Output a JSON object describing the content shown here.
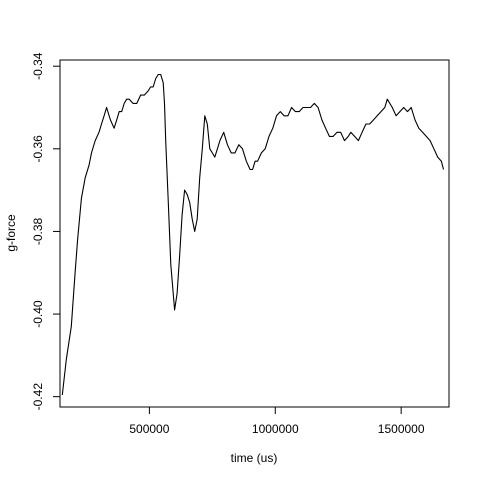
{
  "chart_data": {
    "type": "line",
    "title": "",
    "xlabel": "time (us)",
    "ylabel": "g-force",
    "xlim": [
      145000,
      1690000
    ],
    "ylim": [
      -0.4225,
      -0.3385
    ],
    "xticks": [
      500000,
      1000000,
      1500000
    ],
    "xtick_labels": [
      "500000",
      "1000000",
      "1500000"
    ],
    "yticks": [
      -0.42,
      -0.4,
      -0.38,
      -0.36,
      -0.34
    ],
    "ytick_labels": [
      "-0.42",
      "-0.40",
      "-0.38",
      "-0.36",
      "-0.34"
    ],
    "grid": false,
    "series": [
      {
        "color": "#000000",
        "x": [
          154000,
          170000,
          190000,
          205000,
          215000,
          230000,
          245000,
          260000,
          270000,
          285000,
          300000,
          310000,
          320000,
          330000,
          345000,
          360000,
          370000,
          380000,
          390000,
          400000,
          410000,
          420000,
          435000,
          450000,
          465000,
          480000,
          495000,
          505000,
          515000,
          525000,
          535000,
          545000,
          555000,
          560000,
          565000,
          575000,
          585000,
          600000,
          610000,
          620000,
          630000,
          640000,
          650000,
          660000,
          670000,
          680000,
          690000,
          700000,
          710000,
          720000,
          730000,
          740000,
          750000,
          760000,
          770000,
          780000,
          795000,
          810000,
          825000,
          840000,
          855000,
          870000,
          885000,
          900000,
          910000,
          920000,
          930000,
          945000,
          960000,
          975000,
          990000,
          1005000,
          1020000,
          1035000,
          1050000,
          1065000,
          1080000,
          1095000,
          1110000,
          1125000,
          1140000,
          1155000,
          1170000,
          1185000,
          1200000,
          1215000,
          1230000,
          1245000,
          1260000,
          1275000,
          1290000,
          1300000,
          1315000,
          1330000,
          1345000,
          1360000,
          1375000,
          1390000,
          1405000,
          1420000,
          1435000,
          1445000,
          1455000,
          1465000,
          1480000,
          1495000,
          1510000,
          1525000,
          1540000,
          1555000,
          1570000,
          1585000,
          1600000,
          1615000,
          1630000,
          1645000,
          1660000,
          1668000
        ],
        "y": [
          -0.4196,
          -0.411,
          -0.403,
          -0.39,
          -0.382,
          -0.372,
          -0.367,
          -0.364,
          -0.361,
          -0.358,
          -0.356,
          -0.354,
          -0.352,
          -0.35,
          -0.353,
          -0.355,
          -0.353,
          -0.351,
          -0.351,
          -0.349,
          -0.348,
          -0.348,
          -0.349,
          -0.349,
          -0.347,
          -0.347,
          -0.346,
          -0.345,
          -0.345,
          -0.343,
          -0.342,
          -0.342,
          -0.344,
          -0.349,
          -0.358,
          -0.373,
          -0.388,
          -0.399,
          -0.395,
          -0.386,
          -0.376,
          -0.37,
          -0.371,
          -0.373,
          -0.377,
          -0.38,
          -0.377,
          -0.367,
          -0.36,
          -0.352,
          -0.354,
          -0.36,
          -0.361,
          -0.362,
          -0.36,
          -0.358,
          -0.356,
          -0.359,
          -0.361,
          -0.361,
          -0.359,
          -0.36,
          -0.363,
          -0.365,
          -0.365,
          -0.363,
          -0.363,
          -0.361,
          -0.36,
          -0.357,
          -0.355,
          -0.352,
          -0.351,
          -0.352,
          -0.352,
          -0.35,
          -0.351,
          -0.351,
          -0.35,
          -0.35,
          -0.35,
          -0.349,
          -0.35,
          -0.353,
          -0.355,
          -0.357,
          -0.357,
          -0.356,
          -0.356,
          -0.358,
          -0.357,
          -0.356,
          -0.357,
          -0.358,
          -0.356,
          -0.354,
          -0.354,
          -0.353,
          -0.352,
          -0.351,
          -0.35,
          -0.348,
          -0.349,
          -0.35,
          -0.352,
          -0.351,
          -0.35,
          -0.351,
          -0.35,
          -0.353,
          -0.355,
          -0.356,
          -0.357,
          -0.358,
          -0.36,
          -0.362,
          -0.363,
          -0.365
        ]
      }
    ]
  }
}
